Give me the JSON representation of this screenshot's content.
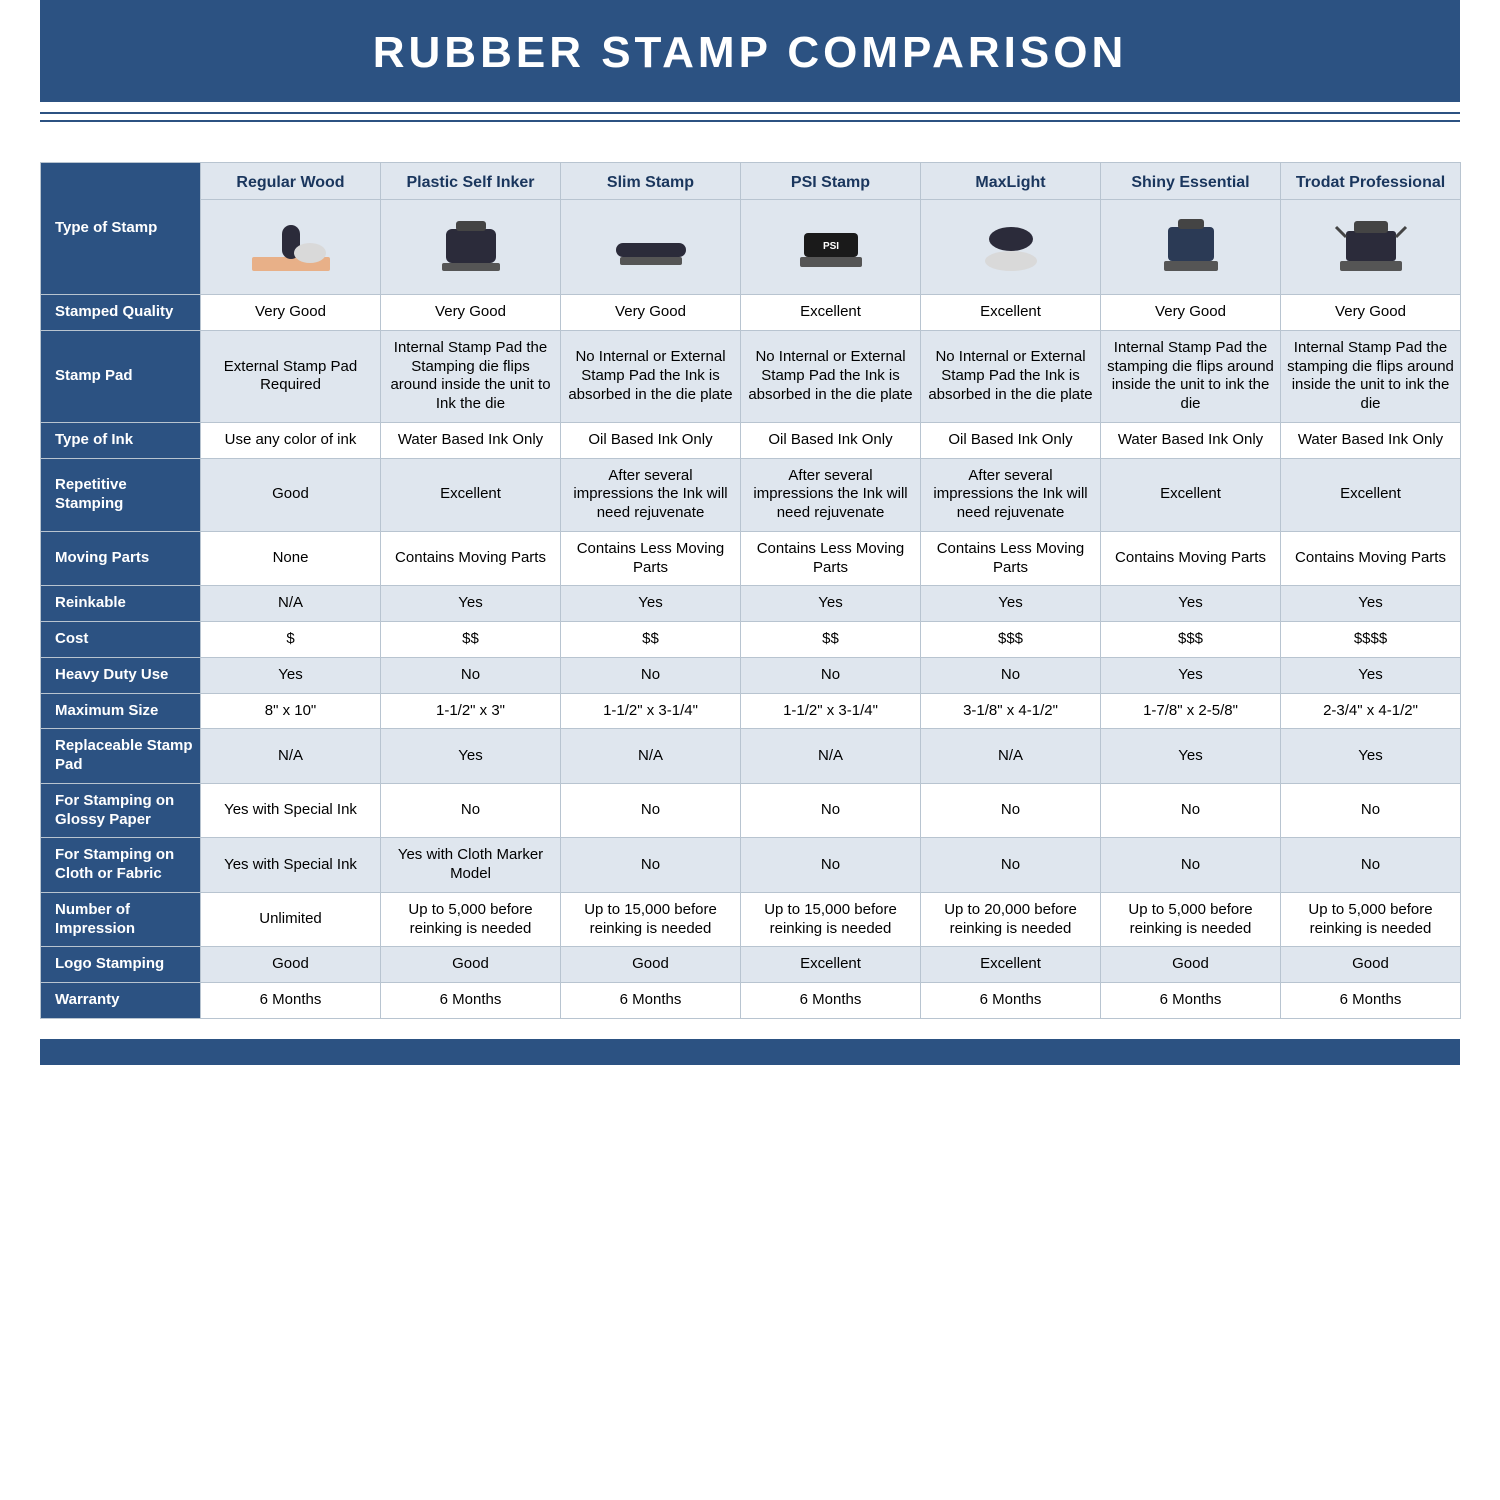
{
  "colors": {
    "brand": "#2c5282",
    "stripe": "#dfe6ee",
    "border": "#b8c4d0",
    "text_dark": "#1a365d",
    "white": "#ffffff"
  },
  "title": "RUBBER STAMP COMPARISON",
  "corner_label": "Type of Stamp",
  "columns": [
    "Regular Wood",
    "Plastic Self Inker",
    "Slim Stamp",
    "PSI Stamp",
    "MaxLight",
    "Shiny Essential",
    "Trodat Professional"
  ],
  "rows": [
    {
      "label": "Stamped Quality",
      "cells": [
        "Very Good",
        "Very Good",
        "Very Good",
        "Excellent",
        "Excellent",
        "Very Good",
        "Very Good"
      ]
    },
    {
      "label": "Stamp Pad",
      "cells": [
        "External Stamp Pad Required",
        "Internal Stamp Pad the Stamping die flips around inside the unit to Ink the die",
        "No Internal or External Stamp Pad the Ink is absorbed in the die plate",
        "No Internal or External Stamp Pad the Ink is absorbed in the die plate",
        "No Internal or External Stamp Pad the Ink is absorbed in the die plate",
        "Internal Stamp Pad the stamping die flips around inside the unit to ink the die",
        "Internal Stamp Pad the stamping die flips around inside the unit to ink the die"
      ]
    },
    {
      "label": "Type of Ink",
      "cells": [
        "Use any color of ink",
        "Water Based Ink Only",
        "Oil Based Ink Only",
        "Oil Based Ink Only",
        "Oil Based Ink Only",
        "Water Based Ink Only",
        "Water Based Ink Only"
      ]
    },
    {
      "label": "Repetitive Stamping",
      "cells": [
        "Good",
        "Excellent",
        "After several impressions the Ink will need rejuvenate",
        "After several impressions the Ink will need rejuvenate",
        "After several impressions the Ink will need rejuvenate",
        "Excellent",
        "Excellent"
      ]
    },
    {
      "label": "Moving Parts",
      "cells": [
        "None",
        "Contains Moving Parts",
        "Contains Less Moving Parts",
        "Contains Less Moving Parts",
        "Contains Less Moving Parts",
        "Contains Moving Parts",
        "Contains Moving Parts"
      ]
    },
    {
      "label": "Reinkable",
      "cells": [
        "N/A",
        "Yes",
        "Yes",
        "Yes",
        "Yes",
        "Yes",
        "Yes"
      ]
    },
    {
      "label": "Cost",
      "cells": [
        "$",
        "$$",
        "$$",
        "$$",
        "$$$",
        "$$$",
        "$$$$"
      ]
    },
    {
      "label": "Heavy Duty Use",
      "cells": [
        "Yes",
        "No",
        "No",
        "No",
        "No",
        "Yes",
        "Yes"
      ]
    },
    {
      "label": "Maximum Size",
      "cells": [
        "8\" x 10\"",
        "1-1/2\" x 3\"",
        "1-1/2\" x 3-1/4\"",
        "1-1/2\" x 3-1/4\"",
        "3-1/8\" x 4-1/2\"",
        "1-7/8\" x 2-5/8\"",
        "2-3/4\" x 4-1/2\""
      ]
    },
    {
      "label": "Replaceable Stamp Pad",
      "cells": [
        "N/A",
        "Yes",
        "N/A",
        "N/A",
        "N/A",
        "Yes",
        "Yes"
      ]
    },
    {
      "label": "For Stamping on Glossy Paper",
      "cells": [
        "Yes with Special Ink",
        "No",
        "No",
        "No",
        "No",
        "No",
        "No"
      ]
    },
    {
      "label": "For Stamping on Cloth or Fabric",
      "cells": [
        "Yes with Special Ink",
        "Yes with Cloth Marker Model",
        "No",
        "No",
        "No",
        "No",
        "No"
      ]
    },
    {
      "label": "Number of Impression",
      "cells": [
        "Unlimited",
        "Up to 5,000 before reinking is needed",
        "Up to 15,000 before reinking is needed",
        "Up to 15,000 before reinking is needed",
        "Up to 20,000 before reinking is needed",
        "Up to 5,000 before reinking is needed",
        "Up to 5,000 before reinking is needed"
      ]
    },
    {
      "label": "Logo Stamping",
      "cells": [
        "Good",
        "Good",
        "Good",
        "Excellent",
        "Excellent",
        "Good",
        "Good"
      ]
    },
    {
      "label": "Warranty",
      "cells": [
        "6 Months",
        "6 Months",
        "6 Months",
        "6 Months",
        "6 Months",
        "6 Months",
        "6 Months"
      ]
    }
  ],
  "icons": [
    "wood-stamp-icon",
    "self-inker-icon",
    "slim-stamp-icon",
    "psi-stamp-icon",
    "maxlight-stamp-icon",
    "shiny-stamp-icon",
    "trodat-stamp-icon"
  ]
}
